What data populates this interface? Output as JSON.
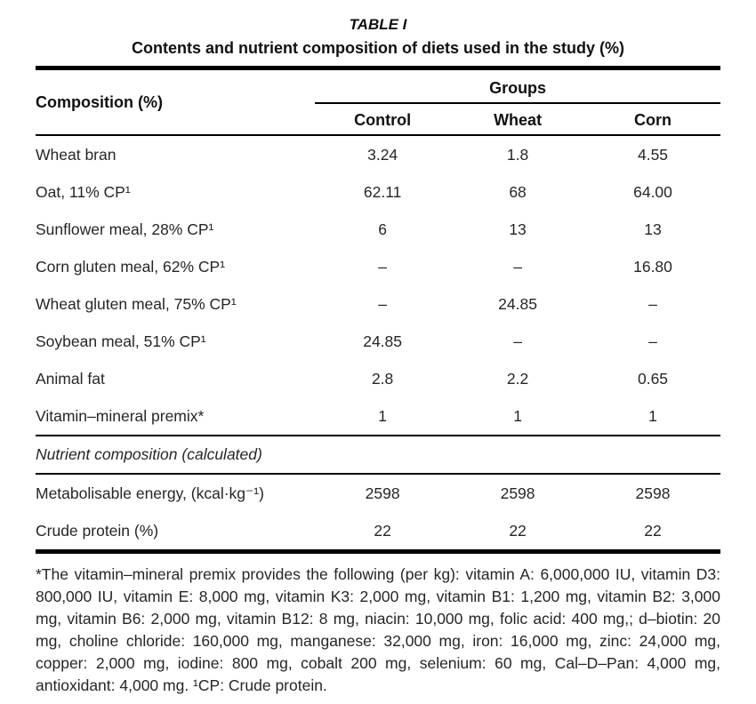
{
  "table": {
    "label": "TABLE I",
    "title": "Contents and nutrient composition of diets used in the study (%)",
    "header": {
      "composition_label": "Composition (%)",
      "groups_label": "Groups",
      "columns": [
        "Control",
        "Wheat",
        "Corn"
      ]
    },
    "rows": [
      {
        "label": "Wheat bran",
        "values": [
          "3.24",
          "1.8",
          "4.55"
        ]
      },
      {
        "label": "Oat, 11% CP¹",
        "values": [
          "62.11",
          "68",
          "64.00"
        ]
      },
      {
        "label": "Sunflower meal, 28% CP¹",
        "values": [
          "6",
          "13",
          "13"
        ]
      },
      {
        "label": "Corn gluten meal, 62% CP¹",
        "values": [
          "–",
          "–",
          "16.80"
        ]
      },
      {
        "label": "Wheat gluten meal, 75% CP¹",
        "values": [
          "–",
          "24.85",
          "–"
        ]
      },
      {
        "label": "Soybean meal, 51% CP¹",
        "values": [
          "24.85",
          "–",
          "–"
        ]
      },
      {
        "label": "Animal fat",
        "values": [
          "2.8",
          "2.2",
          "0.65"
        ]
      },
      {
        "label": "Vitamin–mineral premix*",
        "values": [
          "1",
          "1",
          "1"
        ]
      }
    ],
    "section_header": "Nutrient composition (calculated)",
    "nutrient_rows": [
      {
        "label": "Metabolisable energy, (kcal·kg⁻¹)",
        "values": [
          "2598",
          "2598",
          "2598"
        ]
      },
      {
        "label": "Crude protein (%)",
        "values": [
          "22",
          "22",
          "22"
        ]
      }
    ],
    "footnote": "*The vitamin–mineral premix provides the following (per kg): vitamin A: 6,000,000 IU, vitamin D3: 800,000 IU, vitamin E: 8,000 mg, vitamin K3: 2,000 mg, vitamin B1: 1,200 mg, vitamin B2: 3,000 mg, vitamin B6: 2,000 mg, vitamin B12: 8 mg, niacin: 10,000 mg, folic acid: 400 mg,; d–biotin: 20 mg, choline chloride: 160,000 mg, manganese: 32,000 mg, iron: 16,000 mg, zinc: 24,000 mg, copper: 2,000 mg, iodine: 800 mg, cobalt 200 mg, selenium: 60 mg, Cal–D–Pan: 4,000 mg, antioxidant: 4,000 mg. ¹CP: Crude protein."
  },
  "colors": {
    "background": "#ffffff",
    "text": "#262626",
    "heading_text": "#111111",
    "rule": "#000000"
  }
}
